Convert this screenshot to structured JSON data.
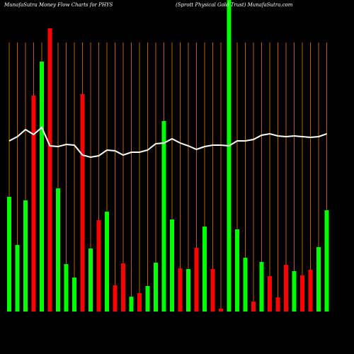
{
  "chart_data": {
    "type": "bar",
    "title": "MunafaSutra  Money Flow  Charts for PHYS",
    "subtitle": "(Sprott Physical Gold Trust) MunafaSutra.com",
    "categories": [
      null,
      null,
      null,
      null,
      null,
      null,
      null,
      null,
      null,
      null,
      null,
      null,
      null,
      null,
      null,
      null,
      null,
      null,
      null,
      null,
      null,
      null,
      null,
      null,
      null,
      null,
      null,
      null,
      null,
      null,
      null,
      null,
      null,
      null,
      null,
      null,
      null,
      null,
      null,
      null
    ],
    "values": [
      162,
      94,
      157,
      305,
      353,
      400,
      174,
      67,
      48,
      307,
      89,
      129,
      141,
      37,
      68,
      21,
      26,
      36,
      69,
      269,
      130,
      61,
      60,
      90,
      120,
      60,
      4,
      440,
      116,
      76,
      14,
      70,
      50,
      20,
      66,
      57,
      51,
      59,
      91,
      143
    ],
    "colors": [
      "#00ff00",
      "#00ff00",
      "#00ff00",
      "#ff0000",
      "#00ff00",
      "#ff0000",
      "#00ff00",
      "#00ff00",
      "#00ff00",
      "#ff0000",
      "#00ff00",
      "#ff0000",
      "#00ff00",
      "#ff0000",
      "#ff0000",
      "#00ff00",
      "#ff0000",
      "#00ff00",
      "#00ff00",
      "#00ff00",
      "#00ff00",
      "#ff0000",
      "#00ff00",
      "#ff0000",
      "#00ff00",
      "#ff0000",
      "#ff0000",
      "#00ff00",
      "#00ff00",
      "#00ff00",
      "#ff0000",
      "#00ff00",
      "#ff0000",
      "#ff0000",
      "#ff0000",
      "#00ff00",
      "#ff0000",
      "#ff0000",
      "#00ff00",
      "#00ff00"
    ],
    "line_values": [
      241,
      247,
      257,
      250,
      260,
      234,
      233,
      236,
      235,
      221,
      218,
      220,
      228,
      227,
      221,
      225,
      225,
      228,
      237,
      238,
      244,
      238,
      234,
      229,
      233,
      235,
      235,
      234,
      241,
      241,
      243,
      249,
      251,
      248,
      247,
      248,
      247,
      246,
      247,
      251
    ],
    "line_color": "#ffffff",
    "grid_color": "#b36200",
    "ylim": [
      0,
      440
    ]
  }
}
